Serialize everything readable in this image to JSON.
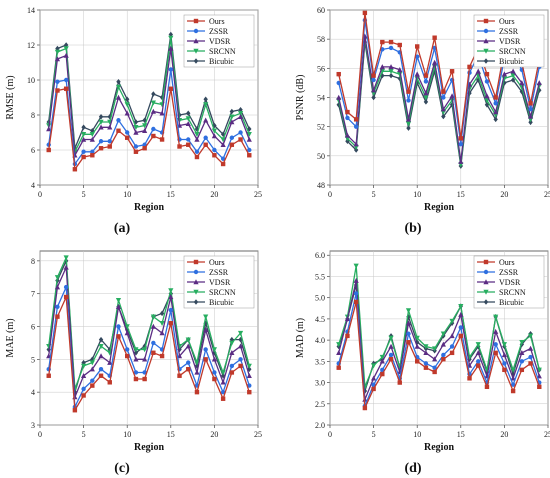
{
  "figure": {
    "panel_labels": [
      "(a)",
      "(b)",
      "(c)",
      "(d)"
    ]
  },
  "series_styles": [
    {
      "name": "Ours",
      "color": "#c0392b",
      "marker": "square"
    },
    {
      "name": "ZSSR",
      "color": "#2e6fe0",
      "marker": "circle"
    },
    {
      "name": "VDSR",
      "color": "#5b2c83",
      "marker": "triangle"
    },
    {
      "name": "SRCNN",
      "color": "#27ae60",
      "marker": "triangle-down"
    },
    {
      "name": "Bicubic",
      "color": "#34495e",
      "marker": "diamond"
    }
  ],
  "chart_data": [
    {
      "type": "line",
      "panel": "(a)",
      "xlabel": "Region",
      "ylabel": "RMSE (m)",
      "xlim": [
        0,
        25
      ],
      "ylim": [
        4,
        14
      ],
      "xticks": [
        0,
        5,
        10,
        15,
        20,
        25
      ],
      "yticks": [
        4,
        6,
        8,
        10,
        12,
        14
      ],
      "legend": "top-right",
      "grid": true,
      "x": [
        1,
        2,
        3,
        4,
        5,
        6,
        7,
        8,
        9,
        10,
        11,
        12,
        13,
        14,
        15,
        16,
        17,
        18,
        19,
        20,
        21,
        22,
        23,
        24
      ],
      "series": [
        {
          "name": "Ours",
          "values": [
            6.0,
            9.4,
            9.5,
            4.9,
            5.6,
            5.7,
            6.1,
            6.2,
            7.1,
            6.7,
            5.9,
            6.1,
            6.8,
            6.6,
            9.5,
            6.2,
            6.3,
            5.6,
            6.3,
            5.7,
            5.2,
            6.3,
            6.6,
            5.7
          ]
        },
        {
          "name": "ZSSR",
          "values": [
            6.3,
            9.9,
            10.0,
            5.2,
            5.9,
            5.9,
            6.5,
            6.5,
            7.7,
            7.0,
            6.2,
            6.3,
            7.2,
            7.0,
            10.6,
            6.6,
            6.6,
            5.9,
            6.7,
            6.0,
            5.5,
            6.7,
            7.0,
            6.0
          ]
        },
        {
          "name": "VDSR",
          "values": [
            7.2,
            11.2,
            11.4,
            5.7,
            6.6,
            6.6,
            7.3,
            7.3,
            9.0,
            8.1,
            7.0,
            7.1,
            8.2,
            8.1,
            11.8,
            7.4,
            7.5,
            6.6,
            7.7,
            6.8,
            6.3,
            7.6,
            7.9,
            6.6
          ]
        },
        {
          "name": "SRCNN",
          "values": [
            7.4,
            11.6,
            11.8,
            5.9,
            6.9,
            6.9,
            7.6,
            7.6,
            9.6,
            8.6,
            7.3,
            7.4,
            8.7,
            8.6,
            12.4,
            7.7,
            7.8,
            6.9,
            8.6,
            7.1,
            6.6,
            7.9,
            8.1,
            6.9
          ]
        },
        {
          "name": "Bicubic",
          "values": [
            7.6,
            11.8,
            12.0,
            6.1,
            7.3,
            7.1,
            7.9,
            7.9,
            9.9,
            8.9,
            7.6,
            7.7,
            9.2,
            9.0,
            12.6,
            8.0,
            8.1,
            7.2,
            8.9,
            7.4,
            6.9,
            8.2,
            8.3,
            7.2
          ]
        }
      ]
    },
    {
      "type": "line",
      "panel": "(b)",
      "xlabel": "Region",
      "ylabel": "PSNR (dB)",
      "xlim": [
        0,
        25
      ],
      "ylim": [
        48,
        60
      ],
      "xticks": [
        0,
        5,
        10,
        15,
        20,
        25
      ],
      "yticks": [
        48,
        50,
        52,
        54,
        56,
        58,
        60
      ],
      "legend": "top-right",
      "grid": true,
      "x": [
        1,
        2,
        3,
        4,
        5,
        6,
        7,
        8,
        9,
        10,
        11,
        12,
        13,
        14,
        15,
        16,
        17,
        18,
        19,
        20,
        21,
        22,
        23,
        24
      ],
      "series": [
        {
          "name": "Ours",
          "values": [
            55.6,
            53.0,
            52.5,
            59.8,
            55.5,
            57.8,
            57.8,
            57.6,
            54.4,
            57.5,
            55.5,
            58.1,
            54.4,
            55.8,
            51.2,
            56.1,
            57.4,
            55.6,
            54.0,
            57.3,
            57.5,
            56.4,
            53.6,
            56.6
          ]
        },
        {
          "name": "ZSSR",
          "values": [
            55.0,
            52.6,
            52.0,
            59.3,
            55.2,
            57.3,
            57.4,
            57.1,
            53.8,
            56.8,
            55.1,
            57.4,
            54.0,
            55.2,
            50.8,
            55.7,
            56.9,
            55.1,
            53.6,
            56.7,
            57.0,
            55.9,
            53.2,
            56.1
          ]
        },
        {
          "name": "VDSR",
          "values": [
            54.0,
            51.4,
            50.8,
            58.2,
            54.5,
            56.1,
            56.1,
            55.9,
            52.5,
            55.6,
            54.3,
            56.4,
            53.2,
            54.1,
            49.6,
            54.9,
            55.8,
            54.1,
            53.0,
            55.6,
            55.8,
            55.0,
            52.7,
            55.0
          ]
        },
        {
          "name": "SRCNN",
          "values": [
            53.8,
            51.2,
            50.6,
            58.0,
            54.3,
            55.8,
            55.8,
            55.6,
            52.2,
            55.3,
            54.0,
            56.1,
            53.0,
            53.8,
            49.4,
            54.6,
            55.5,
            53.8,
            52.8,
            55.3,
            55.5,
            54.7,
            52.5,
            54.8
          ]
        },
        {
          "name": "Bicubic",
          "values": [
            53.5,
            51.0,
            50.4,
            57.8,
            54.0,
            55.5,
            55.5,
            55.3,
            51.9,
            55.0,
            53.7,
            55.8,
            52.7,
            53.5,
            49.3,
            54.3,
            55.2,
            53.5,
            52.5,
            55.0,
            55.2,
            54.4,
            52.3,
            54.5
          ]
        }
      ]
    },
    {
      "type": "line",
      "panel": "(c)",
      "xlabel": "Region",
      "ylabel": "MAE (m)",
      "xlim": [
        0,
        25
      ],
      "ylim": [
        3,
        8.3
      ],
      "xticks": [
        0,
        5,
        10,
        15,
        20,
        25
      ],
      "yticks": [
        3,
        4,
        5,
        6,
        7,
        8
      ],
      "legend": "top-right",
      "grid": true,
      "x": [
        1,
        2,
        3,
        4,
        5,
        6,
        7,
        8,
        9,
        10,
        11,
        12,
        13,
        14,
        15,
        16,
        17,
        18,
        19,
        20,
        21,
        22,
        23,
        24
      ],
      "series": [
        {
          "name": "Ours",
          "values": [
            4.5,
            6.3,
            6.9,
            3.45,
            3.9,
            4.2,
            4.5,
            4.3,
            5.7,
            5.1,
            4.4,
            4.4,
            5.2,
            5.1,
            6.1,
            4.5,
            4.7,
            4.0,
            5.0,
            4.4,
            3.8,
            4.6,
            4.8,
            4.0
          ]
        },
        {
          "name": "ZSSR",
          "values": [
            4.7,
            6.6,
            7.2,
            3.55,
            4.1,
            4.35,
            4.7,
            4.5,
            6.0,
            5.3,
            4.6,
            4.6,
            5.5,
            5.3,
            6.5,
            4.7,
            4.9,
            4.2,
            5.3,
            4.6,
            4.0,
            4.8,
            5.0,
            4.2
          ]
        },
        {
          "name": "VDSR",
          "values": [
            5.1,
            7.2,
            7.8,
            3.85,
            4.5,
            4.7,
            5.1,
            4.9,
            6.6,
            5.8,
            5.0,
            5.0,
            6.0,
            5.8,
            6.9,
            5.1,
            5.4,
            4.6,
            5.9,
            5.0,
            4.3,
            5.2,
            5.4,
            4.5
          ]
        },
        {
          "name": "SRCNN",
          "values": [
            5.4,
            7.5,
            8.1,
            4.1,
            4.8,
            4.9,
            5.4,
            5.2,
            6.8,
            6.0,
            5.3,
            5.3,
            6.3,
            6.1,
            7.1,
            5.4,
            5.6,
            4.9,
            6.3,
            5.3,
            4.6,
            5.5,
            5.8,
            4.8
          ]
        },
        {
          "name": "Bicubic",
          "values": [
            5.3,
            7.4,
            8.0,
            4.0,
            4.9,
            5.0,
            5.6,
            5.3,
            6.6,
            5.9,
            5.2,
            5.4,
            6.3,
            6.4,
            7.0,
            5.3,
            5.6,
            4.8,
            6.1,
            5.2,
            4.5,
            5.6,
            5.6,
            4.7
          ]
        }
      ]
    },
    {
      "type": "line",
      "panel": "(d)",
      "xlabel": "Region",
      "ylabel": "MAD (m)",
      "xlim": [
        0,
        25
      ],
      "ylim": [
        2.0,
        6.1
      ],
      "xticks": [
        0,
        5,
        10,
        15,
        20,
        25
      ],
      "yticks": [
        2.0,
        2.5,
        3.0,
        3.5,
        4.0,
        4.5,
        5.0,
        5.5,
        6.0
      ],
      "legend": "top-right",
      "grid": true,
      "x": [
        1,
        2,
        3,
        4,
        5,
        6,
        7,
        8,
        9,
        10,
        11,
        12,
        13,
        14,
        15,
        16,
        17,
        18,
        19,
        20,
        21,
        22,
        23,
        24
      ],
      "series": [
        {
          "name": "Ours",
          "values": [
            3.35,
            4.1,
            4.9,
            2.4,
            2.85,
            3.2,
            3.55,
            3.0,
            3.95,
            3.5,
            3.35,
            3.25,
            3.55,
            3.7,
            4.1,
            3.1,
            3.4,
            2.9,
            3.7,
            3.3,
            2.8,
            3.3,
            3.45,
            2.9
          ]
        },
        {
          "name": "ZSSR",
          "values": [
            3.45,
            4.2,
            5.1,
            2.45,
            2.95,
            3.3,
            3.65,
            3.1,
            4.15,
            3.6,
            3.45,
            3.35,
            3.65,
            3.85,
            4.3,
            3.2,
            3.5,
            3.0,
            3.9,
            3.45,
            2.95,
            3.5,
            3.6,
            3.0
          ]
        },
        {
          "name": "VDSR",
          "values": [
            3.7,
            4.5,
            5.4,
            2.6,
            3.1,
            3.5,
            3.85,
            3.25,
            4.4,
            3.85,
            3.7,
            3.55,
            3.9,
            4.1,
            4.6,
            3.4,
            3.7,
            3.15,
            4.2,
            3.65,
            3.1,
            3.7,
            3.8,
            3.15
          ]
        },
        {
          "name": "SRCNN",
          "values": [
            3.9,
            4.55,
            5.75,
            2.9,
            3.4,
            3.6,
            4.05,
            3.35,
            4.7,
            4.05,
            3.85,
            3.8,
            4.15,
            4.45,
            4.8,
            3.6,
            3.9,
            3.3,
            4.55,
            3.9,
            3.3,
            3.95,
            4.1,
            3.3
          ]
        },
        {
          "name": "Bicubic",
          "values": [
            3.85,
            4.5,
            5.3,
            2.8,
            3.45,
            3.55,
            4.1,
            3.35,
            4.55,
            3.95,
            3.8,
            3.75,
            4.1,
            4.4,
            4.8,
            3.55,
            3.85,
            3.25,
            4.55,
            3.85,
            3.2,
            3.9,
            4.15,
            3.3
          ]
        }
      ]
    }
  ]
}
